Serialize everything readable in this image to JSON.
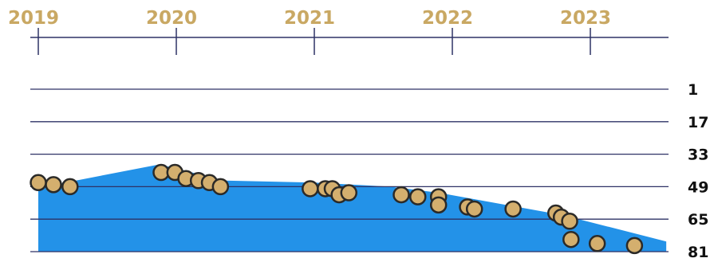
{
  "colors": {
    "year_label": "#C9A863",
    "axis_line": "#2E3266",
    "gridline": "#2E3266",
    "area_fill": "#2392E8",
    "point_fill": "#D4AF6E",
    "point_stroke": "#2B2A28"
  },
  "chart_data": {
    "type": "area",
    "title": "",
    "xlabel": "",
    "ylabel": "",
    "x_ticks": [
      "2019",
      "2020",
      "2021",
      "2022",
      "2023"
    ],
    "y_ticks": [
      "1",
      "17",
      "33",
      "49",
      "65",
      "81"
    ],
    "xlim": [
      2019.0,
      2023.55
    ],
    "ylim_inverted": [
      1,
      81
    ],
    "area_series": {
      "x": [
        2019.0,
        2019.12,
        2019.88,
        2020.35,
        2021.0,
        2021.55,
        2021.9,
        2022.8,
        2023.55
      ],
      "y": [
        46,
        48,
        38,
        46,
        47,
        49,
        52,
        63,
        76
      ]
    },
    "points": [
      {
        "x": 2019.0,
        "y": 47
      },
      {
        "x": 2019.11,
        "y": 48
      },
      {
        "x": 2019.23,
        "y": 49
      },
      {
        "x": 2019.89,
        "y": 42
      },
      {
        "x": 2019.99,
        "y": 42
      },
      {
        "x": 2020.07,
        "y": 45
      },
      {
        "x": 2020.16,
        "y": 46
      },
      {
        "x": 2020.24,
        "y": 47
      },
      {
        "x": 2020.32,
        "y": 49
      },
      {
        "x": 2020.97,
        "y": 50
      },
      {
        "x": 2021.08,
        "y": 50
      },
      {
        "x": 2021.13,
        "y": 50
      },
      {
        "x": 2021.18,
        "y": 53
      },
      {
        "x": 2021.25,
        "y": 52
      },
      {
        "x": 2021.63,
        "y": 53
      },
      {
        "x": 2021.75,
        "y": 54
      },
      {
        "x": 2021.9,
        "y": 54
      },
      {
        "x": 2021.9,
        "y": 58
      },
      {
        "x": 2022.11,
        "y": 59
      },
      {
        "x": 2022.16,
        "y": 60
      },
      {
        "x": 2022.44,
        "y": 60
      },
      {
        "x": 2022.75,
        "y": 62
      },
      {
        "x": 2022.79,
        "y": 64
      },
      {
        "x": 2022.85,
        "y": 66
      },
      {
        "x": 2022.86,
        "y": 75
      },
      {
        "x": 2023.05,
        "y": 77
      },
      {
        "x": 2023.32,
        "y": 78
      }
    ]
  }
}
